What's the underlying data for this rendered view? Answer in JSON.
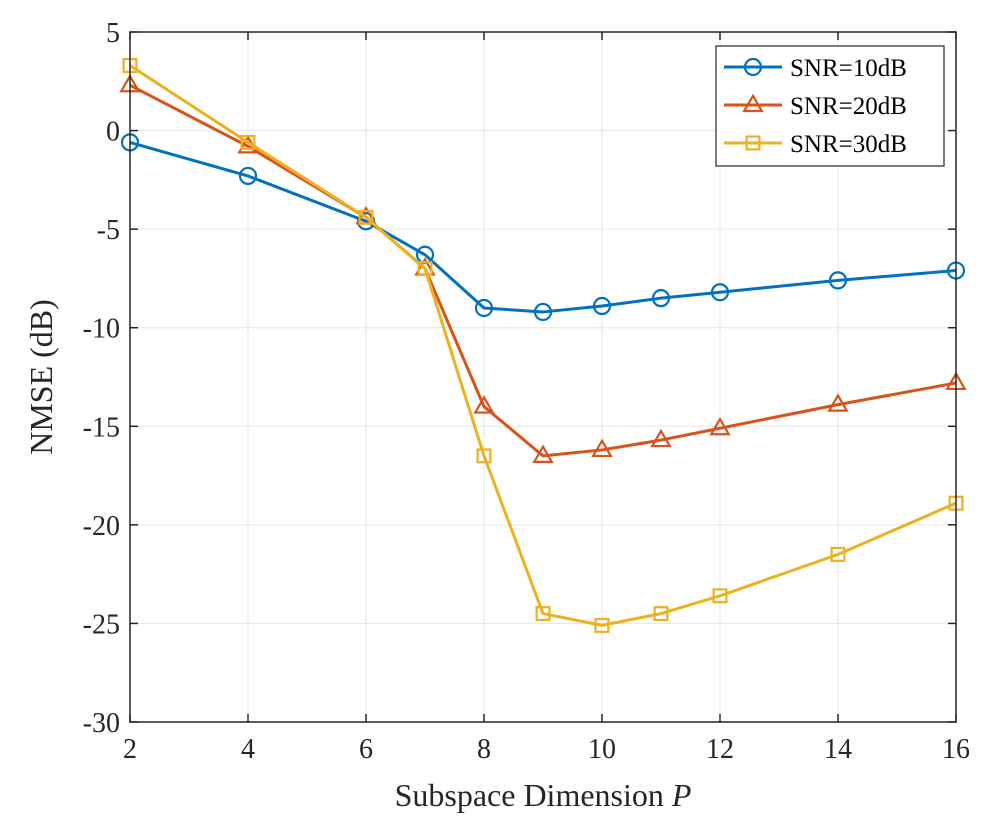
{
  "chart_data": {
    "type": "line",
    "title": "",
    "xlabel": "Subspace Dimension",
    "xlabel_var": "P",
    "ylabel": "NMSE (dB)",
    "xlim": [
      2,
      16
    ],
    "ylim": [
      -30,
      5
    ],
    "xticks": [
      2,
      4,
      6,
      8,
      10,
      12,
      14,
      16
    ],
    "yticks": [
      -30,
      -25,
      -20,
      -15,
      -10,
      -5,
      0,
      5
    ],
    "grid": true,
    "legend_position": "top-right",
    "x": [
      2,
      4,
      6,
      7,
      8,
      9,
      10,
      11,
      12,
      14,
      16
    ],
    "series": [
      {
        "name": "SNR=10dB",
        "color": "#0072BD",
        "marker": "circle",
        "values": [
          -0.6,
          -2.3,
          -4.6,
          -6.3,
          -9.0,
          -9.2,
          -8.9,
          -8.5,
          -8.2,
          -7.6,
          -7.1
        ]
      },
      {
        "name": "SNR=20dB",
        "color": "#D95319",
        "marker": "triangle",
        "values": [
          2.3,
          -0.8,
          -4.4,
          -7.0,
          -14.0,
          -16.5,
          -16.2,
          -15.7,
          -15.1,
          -13.9,
          -12.8
        ]
      },
      {
        "name": "SNR=30dB",
        "color": "#EDB120",
        "marker": "square",
        "values": [
          3.3,
          -0.6,
          -4.4,
          -7.0,
          -16.5,
          -24.5,
          -25.1,
          -24.5,
          -23.6,
          -21.5,
          -18.9
        ]
      }
    ]
  }
}
